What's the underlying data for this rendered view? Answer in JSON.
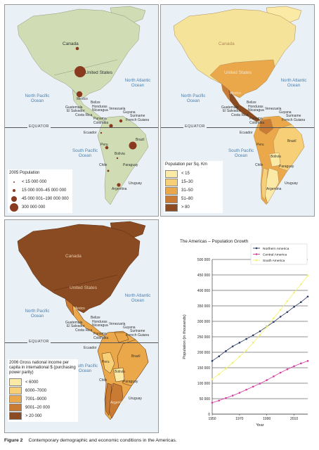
{
  "maps": {
    "oceans": {
      "north_atlantic": "North Atlantic Ocean",
      "north_pacific": "North Pacific Ocean",
      "south_pacific": "South Pacific Ocean"
    },
    "equator": "EQUATOR",
    "countries": {
      "canada": "Canada",
      "united_states": "United States",
      "mexico": "Mexico",
      "belize": "Belize",
      "honduras": "Honduras",
      "nicaragua": "Nicaragua",
      "guatemala": "Guatemala",
      "el_salvador": "El Salvador",
      "costa_rica": "Costa Rica",
      "panama": "Panama",
      "venezuela": "Venezuela",
      "guyana": "Guyana",
      "suriname": "Suriname",
      "french_guiana": "French Guiana",
      "colombia": "Colombia",
      "ecuador": "Ecuador",
      "peru": "Peru",
      "brazil": "Brazil",
      "bolivia": "Bolivia",
      "paraguay": "Paraguay",
      "chile": "Chile",
      "argentina": "Argentina",
      "uruguay": "Uruguay"
    },
    "population_legend": {
      "title": "2005 Population",
      "items": [
        "< 15 000 000",
        "15 000 000–45 000 000",
        "45 000 001–190 000 000",
        "300 000 000"
      ]
    },
    "density_legend": {
      "title": "Population per Sq. Km",
      "items": [
        "< 15",
        "15–30",
        "31–50",
        "51–80",
        "> 80"
      ],
      "colors": [
        "#fbe9a6",
        "#f6cf77",
        "#eaa84b",
        "#c97a33",
        "#8a4a22"
      ]
    },
    "income_legend": {
      "title": "2006 Gross national income per capita in international $ (purchasing power parity)",
      "items": [
        "< 6000",
        "6000–7000",
        "7001–9000",
        "9001–20 000",
        "> 20 000"
      ],
      "colors": [
        "#fbe9a6",
        "#f6cf77",
        "#eaa84b",
        "#c97a33",
        "#8a4a22"
      ]
    },
    "colors": {
      "water": "#e9f1f6",
      "land_base": "#cfdcb4",
      "na_density": "#f6e39a",
      "us_density": "#eaa84b",
      "income_rich": "#8a4a22"
    }
  },
  "chart_data": {
    "type": "line",
    "title": "The Americas – Population Growth",
    "xlabel": "Year",
    "ylabel": "Population (in thousands)",
    "xlim": [
      1950,
      2020
    ],
    "ylim": [
      0,
      500000
    ],
    "x_ticks": [
      1950,
      1970,
      1990,
      2010
    ],
    "y_ticks": [
      0,
      50000,
      100000,
      150000,
      200000,
      250000,
      300000,
      350000,
      400000,
      450000,
      500000
    ],
    "y_tick_labels": [
      "0",
      "50 000",
      "100 000",
      "150 000",
      "200 000",
      "250 000",
      "300 000",
      "350 000",
      "400 000",
      "450 000",
      "500 000"
    ],
    "grid": "horizontal",
    "legend": "top-right",
    "x": [
      1950,
      1955,
      1960,
      1965,
      1970,
      1975,
      1980,
      1985,
      1990,
      1995,
      2000,
      2005,
      2010,
      2015,
      2020
    ],
    "series": [
      {
        "name": "Northern America",
        "color": "#2b3a67",
        "values": [
          172000,
          187000,
          204000,
          219000,
          231000,
          243000,
          255000,
          268000,
          283000,
          298000,
          315000,
          330000,
          347000,
          362000,
          380000
        ]
      },
      {
        "name": "Central America",
        "color": "#d63aa0",
        "values": [
          37000,
          44000,
          52000,
          60000,
          69000,
          79000,
          89000,
          99000,
          110000,
          122000,
          134000,
          145000,
          155000,
          164000,
          172000
        ]
      },
      {
        "name": "South America",
        "color": "#f3f06b",
        "values": [
          113000,
          129000,
          147000,
          166000,
          186000,
          206000,
          231000,
          256000,
          282000,
          310000,
          337000,
          365000,
          393000,
          420000,
          448000
        ]
      }
    ]
  },
  "caption": {
    "label": "Figure 2",
    "text": "Contemporary demographic and economic conditions in the Americas."
  }
}
